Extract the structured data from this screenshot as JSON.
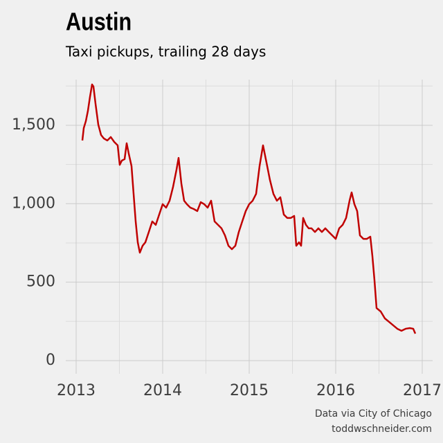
{
  "chart_data": {
    "type": "line",
    "title": "Austin",
    "subtitle": "Taxi pickups, trailing 28 days",
    "caption": [
      "Data via City of Chicago",
      "toddwschneider.com"
    ],
    "x": [
      2013.072,
      2013.088,
      2013.112,
      2013.136,
      2013.16,
      2013.184,
      2013.2,
      2013.224,
      2013.256,
      2013.288,
      2013.32,
      2013.36,
      2013.4,
      2013.44,
      2013.48,
      2013.504,
      2013.528,
      2013.56,
      2013.584,
      2013.608,
      2013.64,
      2013.664,
      2013.688,
      2013.712,
      2013.736,
      2013.768,
      2013.8,
      2013.84,
      2013.88,
      2013.92,
      2013.96,
      2014.0,
      2014.04,
      2014.08,
      2014.12,
      2014.16,
      2014.184,
      2014.216,
      2014.248,
      2014.28,
      2014.32,
      2014.36,
      2014.4,
      2014.44,
      2014.48,
      2014.52,
      2014.56,
      2014.6,
      2014.64,
      2014.68,
      2014.72,
      2014.76,
      2014.8,
      2014.84,
      2014.88,
      2014.92,
      2014.96,
      2015.0,
      2015.04,
      2015.08,
      2015.12,
      2015.16,
      2015.2,
      2015.24,
      2015.28,
      2015.32,
      2015.36,
      2015.4,
      2015.44,
      2015.48,
      2015.52,
      2015.544,
      2015.576,
      2015.6,
      2015.624,
      2015.656,
      2015.688,
      2015.72,
      2015.76,
      2015.8,
      2015.84,
      2015.88,
      2015.92,
      2015.96,
      2016.0,
      2016.04,
      2016.08,
      2016.12,
      2016.16,
      2016.184,
      2016.216,
      2016.248,
      2016.28,
      2016.32,
      2016.36,
      2016.4,
      2016.424,
      2016.448,
      2016.472,
      2016.52,
      2016.568,
      2016.616,
      2016.664,
      2016.712,
      2016.76,
      2016.808,
      2016.856,
      2016.896,
      2016.92
    ],
    "series": [
      {
        "name": "Taxi pickups",
        "color": "#c00000",
        "values": [
          1403,
          1482,
          1526,
          1592,
          1681,
          1760,
          1747,
          1637,
          1504,
          1438,
          1416,
          1403,
          1425,
          1394,
          1372,
          1248,
          1275,
          1284,
          1385,
          1319,
          1240,
          1063,
          887,
          754,
          688,
          732,
          754,
          820,
          887,
          865,
          931,
          997,
          975,
          1019,
          1107,
          1217,
          1292,
          1129,
          1019,
          997,
          975,
          966,
          953,
          1010,
          997,
          975,
          1019,
          887,
          865,
          843,
          798,
          732,
          710,
          732,
          820,
          887,
          953,
          997,
          1019,
          1063,
          1240,
          1372,
          1262,
          1151,
          1063,
          1019,
          1041,
          931,
          909,
          909,
          922,
          732,
          754,
          732,
          909,
          865,
          843,
          843,
          820,
          843,
          820,
          843,
          820,
          798,
          776,
          843,
          865,
          909,
          1019,
          1072,
          997,
          953,
          798,
          776,
          776,
          790,
          666,
          512,
          335,
          313,
          269,
          247,
          225,
          203,
          190,
          203,
          207,
          203,
          172
        ]
      }
    ],
    "xlim": [
      2012.88,
      2017.12
    ],
    "xticks": [
      2013,
      2014,
      2015,
      2016,
      2017
    ],
    "xminor": [
      2013.5,
      2014.5,
      2015.5,
      2016.5
    ],
    "ylim": [
      -84,
      1791
    ],
    "yticks": [
      0,
      500,
      {
        "value": 1000,
        "label": "1,000"
      },
      {
        "value": 1500,
        "label": "1,500"
      }
    ],
    "yminor": [
      250,
      750,
      1250,
      1750
    ],
    "grid": true
  }
}
